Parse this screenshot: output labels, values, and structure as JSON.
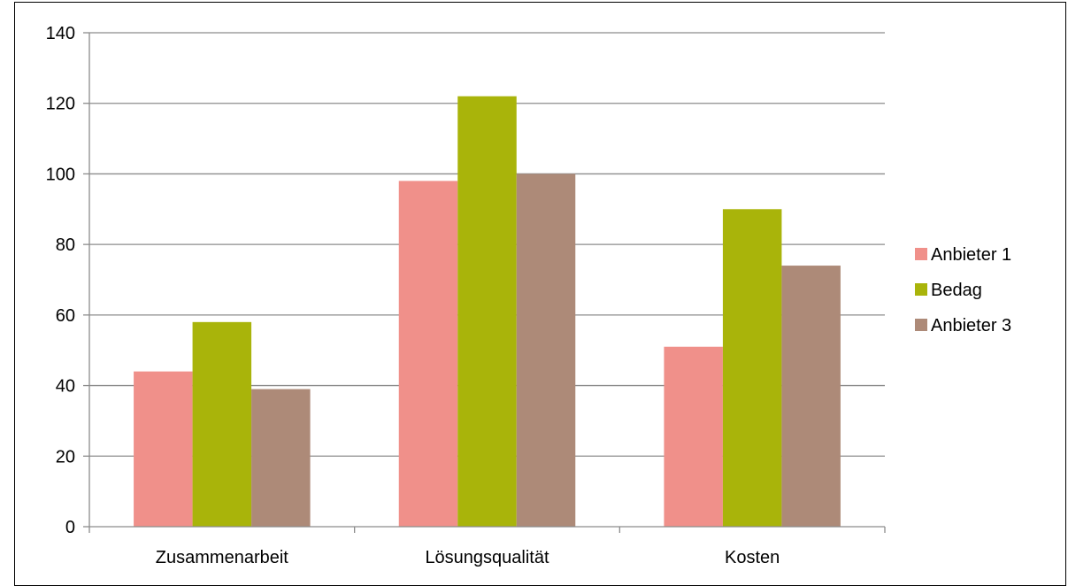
{
  "chart_data": {
    "type": "bar",
    "categories": [
      "Zusammenarbeit",
      "Lösungsqualität",
      "Kosten"
    ],
    "series": [
      {
        "name": "Anbieter 1",
        "color": "#f0908a",
        "values": [
          44,
          98,
          51
        ]
      },
      {
        "name": "Bedag",
        "color": "#a9b40a",
        "values": [
          58,
          122,
          90
        ]
      },
      {
        "name": "Anbieter 3",
        "color": "#ad8a78",
        "values": [
          39,
          100,
          74
        ]
      }
    ],
    "ylim": [
      0,
      140
    ],
    "yticks": [
      0,
      20,
      40,
      60,
      80,
      100,
      120,
      140
    ],
    "grid": true,
    "legend": "right",
    "gridline_color": "#8c8c8c",
    "axis_color": "#8c8c8c"
  }
}
